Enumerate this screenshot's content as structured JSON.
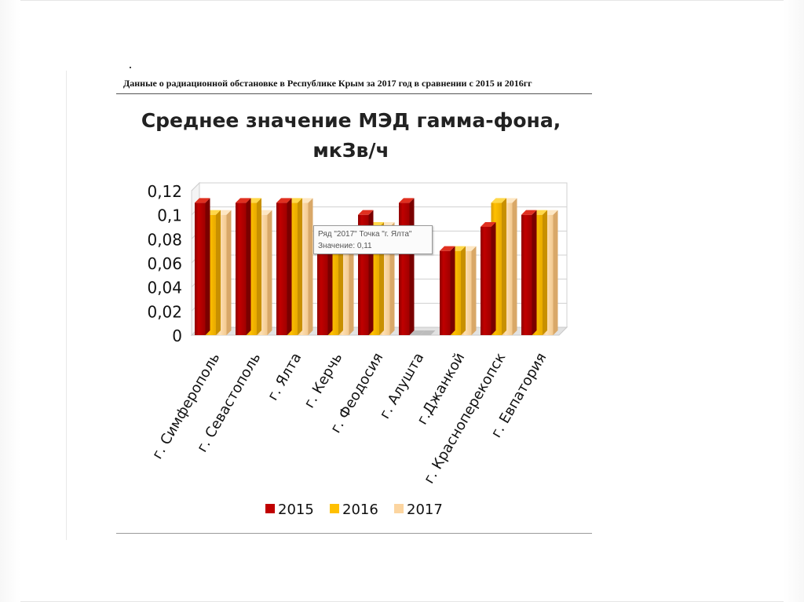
{
  "document": {
    "heading": "Данные о радиационной обстановке в Республике Крым за 2017 год в сравнении с 2015 и 2016гг"
  },
  "tooltip": {
    "line1": "Ряд \"2017\" Точка \"г. Ялта\"",
    "line2": "Значение: 0,11"
  },
  "colors": {
    "s2015": "#c00000",
    "s2016": "#ffc000",
    "s2017": "#fcd5a0"
  },
  "chart_data": {
    "type": "bar",
    "title": "Среднее значение МЭД гамма-фона, мкЗв/ч",
    "title_lines": [
      "Среднее значение МЭД гамма-фона,",
      "мкЗв/ч"
    ],
    "categories": [
      "г. Симферополь",
      "г. Севастополь",
      "г. Ялта",
      "г. Керчь",
      "г. Феодосия",
      "г. Алушта",
      "г.Джанкой",
      "г. Красноперекопск",
      "г. Евпатория"
    ],
    "series": [
      {
        "name": "2015",
        "values": [
          0.11,
          0.11,
          0.11,
          0.07,
          0.1,
          0.11,
          0.07,
          0.09,
          0.1
        ]
      },
      {
        "name": "2016",
        "values": [
          0.1,
          0.11,
          0.11,
          0.07,
          0.09,
          0,
          0.07,
          0.11,
          0.1
        ]
      },
      {
        "name": "2017",
        "values": [
          0.1,
          0.1,
          0.11,
          0.07,
          0.09,
          0,
          0.07,
          0.11,
          0.1
        ]
      }
    ],
    "yticks": [
      "0",
      "0,02",
      "0,04",
      "0,06",
      "0,08",
      "0,1",
      "0,12"
    ],
    "ylim": [
      0,
      0.12
    ],
    "grid": true,
    "legend": "bottom",
    "style": "3d-clustered"
  }
}
